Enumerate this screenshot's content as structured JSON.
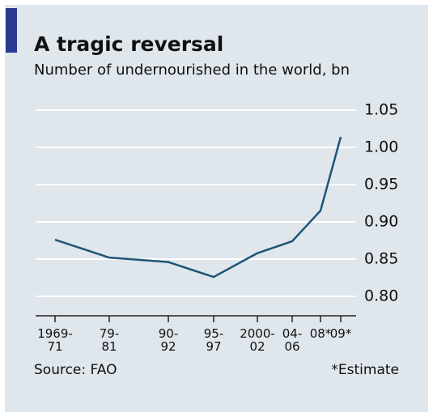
{
  "chart_data": {
    "type": "line",
    "title": "A tragic reversal",
    "subtitle": "Number of undernourished in the world, bn",
    "categories": [
      "1969-\n71",
      "79-\n81",
      "90-\n92",
      "95-\n97",
      "2000-\n02",
      "04-\n06",
      "08*",
      "09*"
    ],
    "series": [
      {
        "name": "Undernourished",
        "color": "#1d5577",
        "values": [
          0.876,
          0.852,
          0.846,
          0.826,
          0.858,
          0.874,
          0.915,
          1.014
        ]
      }
    ],
    "ylim": [
      0.8,
      1.05
    ],
    "yticks": [
      {
        "value": 0.8,
        "label": "0.80"
      },
      0.85,
      {
        "value": 0.9,
        "label": "0.90"
      },
      0.95,
      {
        "value": 1,
        "label": "1.00"
      },
      1.05
    ],
    "grid": true,
    "source": "Source: FAO",
    "note": "*Estimate"
  }
}
